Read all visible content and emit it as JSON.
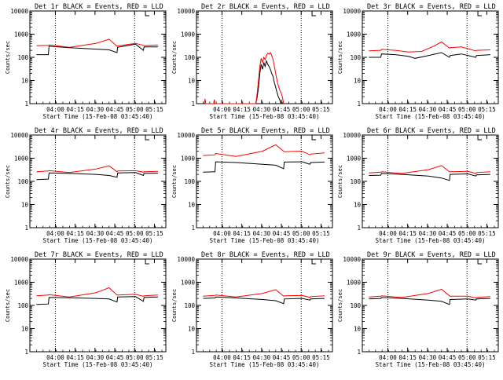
{
  "chart_data": [
    {
      "type": "line",
      "title": "Det 1r BLACK = Events, RED = LLD",
      "xlabel": "Start Time (15-Feb-08 03:45:40)",
      "ylabel": "Counts/sec",
      "yscale": "log",
      "ylim": [
        1,
        10000
      ],
      "x_ticks": [
        "04:00",
        "04:15",
        "04:30",
        "04:45",
        "05:00",
        "05:15"
      ],
      "y_ticks": [
        "1",
        "10",
        "100",
        "1000",
        "10000"
      ],
      "series": [
        {
          "name": "Events",
          "color": "#000000",
          "x": [
            0,
            9,
            9.5,
            25,
            55,
            61,
            61.5,
            75,
            81,
            81.5,
            92
          ],
          "y": [
            130,
            130,
            300,
            260,
            210,
            160,
            270,
            370,
            200,
            280,
            280
          ]
        },
        {
          "name": "LLD",
          "color": "#ff0000",
          "x": [
            0,
            9,
            9.5,
            25,
            45,
            55,
            61,
            61.5,
            75,
            81,
            81.5,
            92
          ],
          "y": [
            320,
            330,
            340,
            270,
            400,
            600,
            300,
            310,
            400,
            330,
            320,
            340
          ]
        }
      ]
    },
    {
      "type": "line",
      "title": "Det 2r BLACK = Events, RED = LLD",
      "xlabel": "Start Time (15-Feb-08 03:45:40)",
      "ylabel": "Counts/sec",
      "yscale": "log",
      "ylim": [
        1,
        10000
      ],
      "x_ticks": [
        "04:00",
        "04:15",
        "04:30",
        "04:45",
        "05:00",
        "05:15"
      ],
      "y_ticks": [
        "1",
        "10",
        "100",
        "1000",
        "10000"
      ],
      "series": [
        {
          "name": "Events",
          "color": "#000000",
          "x": [
            40,
            41,
            42,
            43,
            44,
            45,
            46,
            47,
            48,
            49,
            50,
            51,
            52,
            53,
            54,
            55,
            56,
            57,
            58,
            59
          ],
          "y": [
            1,
            2,
            5,
            20,
            50,
            30,
            60,
            40,
            70,
            50,
            40,
            30,
            20,
            15,
            8,
            5,
            3,
            2,
            1.5,
            1
          ]
        },
        {
          "name": "LLD",
          "color": "#ff0000",
          "x": [
            1,
            1.5,
            2,
            8,
            8.5,
            9,
            40,
            41,
            42,
            43,
            44,
            45,
            46,
            47,
            48,
            49,
            50,
            51,
            52,
            53,
            54,
            55,
            56,
            57,
            58,
            59,
            60,
            61
          ],
          "y": [
            1,
            1.6,
            1,
            1,
            1.5,
            1,
            1,
            3,
            10,
            40,
            90,
            60,
            100,
            80,
            120,
            150,
            140,
            160,
            120,
            80,
            40,
            20,
            10,
            6,
            4,
            3,
            2,
            1
          ]
        }
      ]
    },
    {
      "type": "line",
      "title": "Det 3r BLACK = Events, RED = LLD",
      "xlabel": "Start Time (15-Feb-08 03:45:40)",
      "ylabel": "Counts/sec",
      "yscale": "log",
      "ylim": [
        1,
        10000
      ],
      "x_ticks": [
        "04:00",
        "04:15",
        "04:30",
        "04:45",
        "05:00",
        "05:15"
      ],
      "y_ticks": [
        "1",
        "10",
        "100",
        "1000",
        "10000"
      ],
      "series": [
        {
          "name": "Events",
          "color": "#000000",
          "x": [
            0,
            9,
            9.5,
            20,
            30,
            35,
            45,
            55,
            61,
            61.5,
            70,
            81,
            81.5,
            92
          ],
          "y": [
            100,
            100,
            140,
            130,
            110,
            90,
            120,
            160,
            100,
            120,
            140,
            100,
            120,
            130
          ]
        },
        {
          "name": "LLD",
          "color": "#ff0000",
          "x": [
            0,
            9,
            9.5,
            20,
            30,
            40,
            50,
            55,
            61,
            61.5,
            70,
            81,
            81.5,
            92
          ],
          "y": [
            190,
            200,
            220,
            200,
            170,
            180,
            320,
            460,
            250,
            260,
            280,
            190,
            200,
            210
          ]
        }
      ]
    },
    {
      "type": "line",
      "title": "Det 4r BLACK = Events, RED = LLD",
      "xlabel": "Start Time (15-Feb-08 03:45:40)",
      "ylabel": "Counts/sec",
      "yscale": "log",
      "ylim": [
        1,
        10000
      ],
      "x_ticks": [
        "04:00",
        "04:15",
        "04:30",
        "04:45",
        "05:00",
        "05:15"
      ],
      "y_ticks": [
        "1",
        "10",
        "100",
        "1000",
        "10000"
      ],
      "series": [
        {
          "name": "Events",
          "color": "#000000",
          "x": [
            0,
            9,
            9.5,
            25,
            45,
            55,
            61,
            61.5,
            75,
            81,
            81.5,
            92
          ],
          "y": [
            120,
            125,
            230,
            220,
            200,
            180,
            150,
            230,
            240,
            180,
            220,
            225
          ]
        },
        {
          "name": "LLD",
          "color": "#ff0000",
          "x": [
            0,
            9,
            9.5,
            25,
            45,
            55,
            61,
            61.5,
            75,
            81,
            81.5,
            92
          ],
          "y": [
            260,
            280,
            290,
            240,
            340,
            470,
            260,
            280,
            290,
            250,
            260,
            270
          ]
        }
      ]
    },
    {
      "type": "line",
      "title": "Det 5r BLACK = Events, RED = LLD",
      "xlabel": "Start Time (15-Feb-08 03:45:40)",
      "ylabel": "Counts/sec",
      "yscale": "log",
      "ylim": [
        1,
        10000
      ],
      "x_ticks": [
        "04:00",
        "04:15",
        "04:30",
        "04:45",
        "05:00",
        "05:15"
      ],
      "y_ticks": [
        "1",
        "10",
        "100",
        "1000",
        "10000"
      ],
      "series": [
        {
          "name": "Events",
          "color": "#000000",
          "x": [
            0,
            9,
            9.5,
            25,
            45,
            55,
            61,
            61.5,
            75,
            81,
            81.5,
            92
          ],
          "y": [
            250,
            260,
            700,
            650,
            550,
            500,
            350,
            680,
            700,
            550,
            650,
            680
          ]
        },
        {
          "name": "LLD",
          "color": "#ff0000",
          "x": [
            0,
            9,
            9.5,
            25,
            45,
            55,
            61,
            61.5,
            75,
            81,
            81.5,
            92
          ],
          "y": [
            1300,
            1400,
            1600,
            1200,
            2000,
            3800,
            2000,
            1900,
            2000,
            1400,
            1500,
            1700
          ]
        }
      ]
    },
    {
      "type": "line",
      "title": "Det 6r BLACK = Events, RED = LLD",
      "xlabel": "Start Time (15-Feb-08 03:45:40)",
      "ylabel": "Counts/sec",
      "yscale": "log",
      "ylim": [
        1,
        10000
      ],
      "x_ticks": [
        "04:00",
        "04:15",
        "04:30",
        "04:45",
        "05:00",
        "05:15"
      ],
      "y_ticks": [
        "1",
        "10",
        "100",
        "1000",
        "10000"
      ],
      "series": [
        {
          "name": "Events",
          "color": "#000000",
          "x": [
            0,
            9,
            9.5,
            25,
            45,
            55,
            61,
            61.5,
            75,
            81,
            81.5,
            92
          ],
          "y": [
            180,
            185,
            220,
            200,
            170,
            140,
            110,
            200,
            210,
            170,
            190,
            200
          ]
        },
        {
          "name": "LLD",
          "color": "#ff0000",
          "x": [
            0,
            9,
            9.5,
            25,
            45,
            55,
            61,
            61.5,
            75,
            81,
            81.5,
            92
          ],
          "y": [
            230,
            250,
            260,
            220,
            320,
            480,
            260,
            260,
            270,
            220,
            240,
            260
          ]
        }
      ]
    },
    {
      "type": "line",
      "title": "Det 7r BLACK = Events, RED = LLD",
      "xlabel": "Start Time (15-Feb-08 03:45:40)",
      "ylabel": "Counts/sec",
      "yscale": "log",
      "ylim": [
        1,
        10000
      ],
      "x_ticks": [
        "04:00",
        "04:15",
        "04:30",
        "04:45",
        "05:00",
        "05:15"
      ],
      "y_ticks": [
        "1",
        "10",
        "100",
        "1000",
        "10000"
      ],
      "series": [
        {
          "name": "Events",
          "color": "#000000",
          "x": [
            0,
            9,
            9.5,
            25,
            45,
            55,
            61,
            61.5,
            75,
            81,
            81.5,
            92
          ],
          "y": [
            110,
            115,
            220,
            215,
            200,
            190,
            140,
            230,
            240,
            150,
            220,
            230
          ]
        },
        {
          "name": "LLD",
          "color": "#ff0000",
          "x": [
            0,
            9,
            9.5,
            25,
            45,
            55,
            61,
            61.5,
            75,
            81,
            81.5,
            92
          ],
          "y": [
            260,
            280,
            290,
            230,
            350,
            580,
            280,
            280,
            300,
            250,
            260,
            280
          ]
        }
      ]
    },
    {
      "type": "line",
      "title": "Det 8r BLACK = Events, RED = LLD",
      "xlabel": "Start Time (15-Feb-08 03:45:40)",
      "ylabel": "Counts/sec",
      "yscale": "log",
      "ylim": [
        1,
        10000
      ],
      "x_ticks": [
        "04:00",
        "04:15",
        "04:30",
        "04:45",
        "05:00",
        "05:15"
      ],
      "y_ticks": [
        "1",
        "10",
        "100",
        "1000",
        "10000"
      ],
      "series": [
        {
          "name": "Events",
          "color": "#000000",
          "x": [
            0,
            9,
            9.5,
            25,
            45,
            55,
            61,
            61.5,
            75,
            81,
            81.5,
            92
          ],
          "y": [
            200,
            210,
            230,
            210,
            180,
            160,
            120,
            190,
            200,
            170,
            190,
            200
          ]
        },
        {
          "name": "LLD",
          "color": "#ff0000",
          "x": [
            0,
            9,
            9.5,
            25,
            45,
            55,
            61,
            61.5,
            75,
            81,
            81.5,
            92
          ],
          "y": [
            250,
            270,
            280,
            230,
            330,
            480,
            250,
            260,
            270,
            220,
            240,
            260
          ]
        }
      ]
    },
    {
      "type": "line",
      "title": "Det 9r BLACK = Events, RED = LLD",
      "xlabel": "Start Time (15-Feb-08 03:45:40)",
      "ylabel": "Counts/sec",
      "yscale": "log",
      "ylim": [
        1,
        10000
      ],
      "x_ticks": [
        "04:00",
        "04:15",
        "04:30",
        "04:45",
        "05:00",
        "05:15"
      ],
      "y_ticks": [
        "1",
        "10",
        "100",
        "1000",
        "10000"
      ],
      "series": [
        {
          "name": "Events",
          "color": "#000000",
          "x": [
            0,
            9,
            9.5,
            25,
            45,
            55,
            61,
            61.5,
            75,
            81,
            81.5,
            92
          ],
          "y": [
            190,
            200,
            220,
            200,
            170,
            150,
            110,
            180,
            190,
            170,
            190,
            200
          ]
        },
        {
          "name": "LLD",
          "color": "#ff0000",
          "x": [
            0,
            9,
            9.5,
            25,
            45,
            55,
            61,
            61.5,
            75,
            81,
            81.5,
            92
          ],
          "y": [
            230,
            250,
            260,
            220,
            330,
            500,
            260,
            250,
            250,
            210,
            220,
            240
          ]
        }
      ]
    }
  ]
}
